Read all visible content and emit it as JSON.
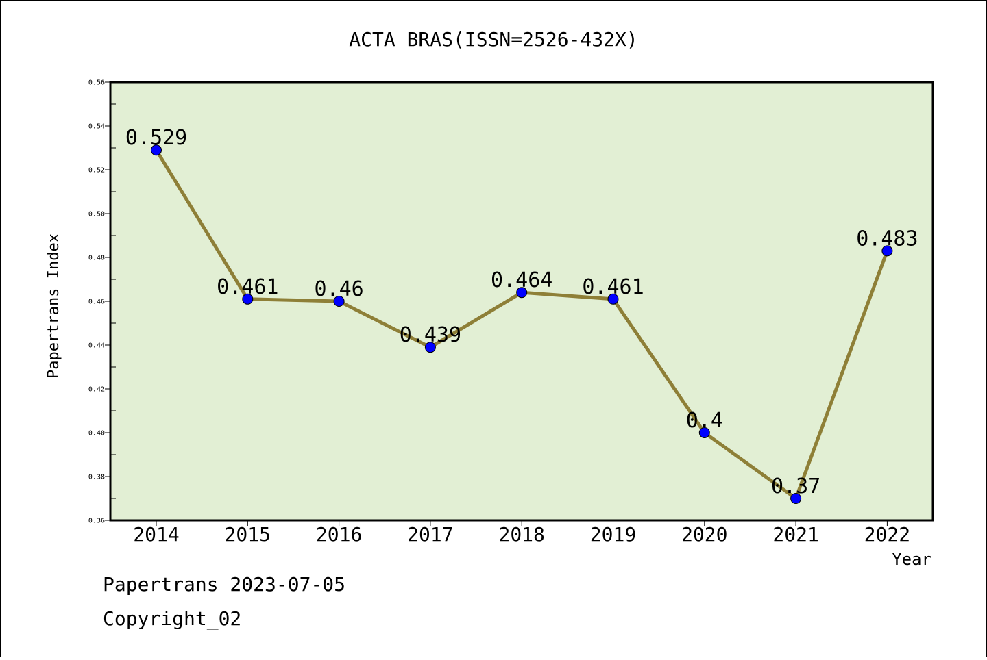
{
  "chart_data": {
    "type": "line",
    "title": "ACTA BRAS(ISSN=2526-432X)",
    "xlabel": "Year",
    "ylabel": "Papertrans Index",
    "categories": [
      "2014",
      "2015",
      "2016",
      "2017",
      "2018",
      "2019",
      "2020",
      "2021",
      "2022"
    ],
    "values": [
      0.529,
      0.461,
      0.46,
      0.439,
      0.464,
      0.461,
      0.4,
      0.37,
      0.483
    ],
    "data_labels": [
      "0.529",
      "0.461",
      "0.46",
      "0.439",
      "0.464",
      "0.461",
      "0.4",
      "0.37",
      "0.483"
    ],
    "ylim": [
      0.36,
      0.56
    ],
    "yticks": [
      "0.36",
      "0.38",
      "0.40",
      "0.42",
      "0.44",
      "0.46",
      "0.48",
      "0.50",
      "0.52",
      "0.54",
      "0.56"
    ],
    "grid": false,
    "colors": {
      "plot_background": "#e2efd4",
      "line": "#8e7f37",
      "marker": "#0000ff"
    }
  },
  "footer": {
    "line1": "Papertrans 2023-07-05",
    "line2": "Copyright_02"
  }
}
